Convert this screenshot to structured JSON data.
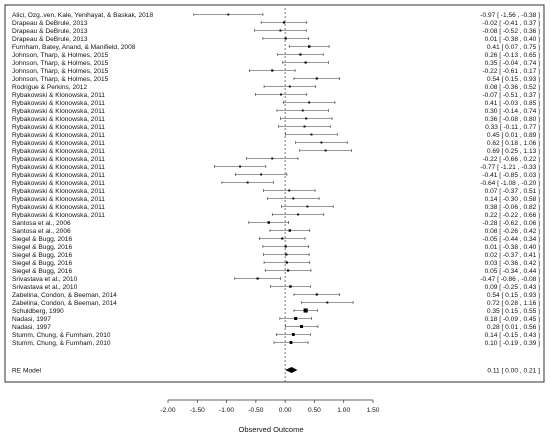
{
  "chart_data": {
    "type": "forest",
    "xlabel": "Observed Outcome",
    "xlim": [
      -2.0,
      1.5
    ],
    "ticks": [
      "-2.00",
      "-1.50",
      "-1.00",
      "-0.50",
      "0.00",
      "0.50",
      "1.00",
      "1.50"
    ],
    "studies": [
      {
        "label": "Alici, Ozg..ven, Kale, Yenihayat, & Baskak, 2018",
        "est": -0.97,
        "lo": -1.56,
        "hi": -0.38,
        "text": "-0.97 [ -1.56 , -0.38 ]"
      },
      {
        "label": "Drapeau & DeBrule, 2013",
        "est": -0.02,
        "lo": -0.41,
        "hi": 0.37,
        "text": "-0.02 [ -0.41 , 0.37 ]"
      },
      {
        "label": "Drapeau & DeBrule, 2013",
        "est": -0.08,
        "lo": -0.52,
        "hi": 0.36,
        "text": "-0.08 [ -0.52 , 0.36 ]"
      },
      {
        "label": "Drapeau & DeBrule, 2013",
        "est": 0.01,
        "lo": -0.38,
        "hi": 0.4,
        "text": "0.01 [ -0.38 , 0.40 ]"
      },
      {
        "label": "Furnham, Batey, Anand, & Manifield, 2008",
        "est": 0.41,
        "lo": 0.07,
        "hi": 0.75,
        "text": "0.41 [ 0.07 , 0.75 ]"
      },
      {
        "label": "Johnson, Tharp, & Holmes, 2015",
        "est": 0.26,
        "lo": -0.13,
        "hi": 0.65,
        "text": "0.26 [ -0.13 , 0.65 ]"
      },
      {
        "label": "Johnson, Tharp, & Holmes, 2015",
        "est": 0.35,
        "lo": -0.04,
        "hi": 0.74,
        "text": "0.35 [ -0.04 , 0.74 ]"
      },
      {
        "label": "Johnson, Tharp, & Holmes, 2015",
        "est": -0.22,
        "lo": -0.61,
        "hi": 0.17,
        "text": "-0.22 [ -0.61 , 0.17 ]"
      },
      {
        "label": "Johnson, Tharp, & Holmes, 2015",
        "est": 0.54,
        "lo": 0.15,
        "hi": 0.93,
        "text": "0.54 [ 0.15 , 0.93 ]"
      },
      {
        "label": "Rodrigue & Perkins, 2012",
        "est": 0.08,
        "lo": -0.36,
        "hi": 0.52,
        "text": "0.08 [ -0.36 , 0.52 ]"
      },
      {
        "label": "Rybakowski & Klonowska, 2011",
        "est": -0.07,
        "lo": -0.51,
        "hi": 0.37,
        "text": "-0.07 [ -0.51 , 0.37 ]"
      },
      {
        "label": "Rybakowski & Klonowska, 2011",
        "est": 0.41,
        "lo": -0.03,
        "hi": 0.85,
        "text": "0.41 [ -0.03 , 0.85 ]"
      },
      {
        "label": "Rybakowski & Klonowska, 2011",
        "est": 0.3,
        "lo": -0.14,
        "hi": 0.74,
        "text": "0.30 [ -0.14 , 0.74 ]"
      },
      {
        "label": "Rybakowski & Klonowska, 2011",
        "est": 0.36,
        "lo": -0.08,
        "hi": 0.8,
        "text": "0.36 [ -0.08 , 0.80 ]"
      },
      {
        "label": "Rybakowski & Klonowska, 2011",
        "est": 0.33,
        "lo": -0.11,
        "hi": 0.77,
        "text": "0.33 [ -0.11 , 0.77 ]"
      },
      {
        "label": "Rybakowski & Klonowska, 2011",
        "est": 0.45,
        "lo": 0.01,
        "hi": 0.89,
        "text": "0.45 [ 0.01 , 0.89 ]"
      },
      {
        "label": "Rybakowski & Klonowska, 2011",
        "est": 0.62,
        "lo": 0.18,
        "hi": 1.06,
        "text": "0.62 [ 0.18 , 1.06 ]"
      },
      {
        "label": "Rybakowski & Klonowska, 2011",
        "est": 0.69,
        "lo": 0.25,
        "hi": 1.13,
        "text": "0.69 [ 0.25 , 1.13 ]"
      },
      {
        "label": "Rybakowski & Klonowska, 2011",
        "est": -0.22,
        "lo": -0.66,
        "hi": 0.22,
        "text": "-0.22 [ -0.66 , 0.22 ]"
      },
      {
        "label": "Rybakowski & Klonowska, 2011",
        "est": -0.77,
        "lo": -1.21,
        "hi": -0.33,
        "text": "-0.77 [ -1.21 , -0.33 ]"
      },
      {
        "label": "Rybakowski & Klonowska, 2011",
        "est": -0.41,
        "lo": -0.85,
        "hi": 0.03,
        "text": "-0.41 [ -0.85 , 0.03 ]"
      },
      {
        "label": "Rybakowski & Klonowska, 2011",
        "est": -0.64,
        "lo": -1.08,
        "hi": -0.2,
        "text": "-0.64 [ -1.08 , -0.20 ]"
      },
      {
        "label": "Rybakowski & Klonowska, 2011",
        "est": 0.07,
        "lo": -0.37,
        "hi": 0.51,
        "text": "0.07 [ -0.37 , 0.51 ]"
      },
      {
        "label": "Rybakowski & Klonowska, 2011",
        "est": 0.14,
        "lo": -0.3,
        "hi": 0.58,
        "text": "0.14 [ -0.30 , 0.58 ]"
      },
      {
        "label": "Rybakowski & Klonowska, 2011",
        "est": 0.38,
        "lo": -0.06,
        "hi": 0.82,
        "text": "0.38 [ -0.06 , 0.82 ]"
      },
      {
        "label": "Rybakowski & Klonowska, 2011",
        "est": 0.22,
        "lo": -0.22,
        "hi": 0.66,
        "text": "0.22 [ -0.22 , 0.66 ]"
      },
      {
        "label": "Santosa et al., 2006",
        "est": -0.28,
        "lo": -0.62,
        "hi": 0.06,
        "text": "-0.28 [ -0.62 , 0.06 ]"
      },
      {
        "label": "Santosa et al., 2006",
        "est": 0.08,
        "lo": -0.26,
        "hi": 0.42,
        "text": "0.08 [ -0.26 , 0.42 ]"
      },
      {
        "label": "Siegel & Bugg, 2016",
        "est": -0.05,
        "lo": -0.44,
        "hi": 0.34,
        "text": "-0.05 [ -0.44 , 0.34 ]"
      },
      {
        "label": "Siegel & Bugg, 2016",
        "est": 0.01,
        "lo": -0.38,
        "hi": 0.4,
        "text": "0.01 [ -0.38 , 0.40 ]"
      },
      {
        "label": "Siegel & Bugg, 2016",
        "est": 0.02,
        "lo": -0.37,
        "hi": 0.41,
        "text": "0.02 [ -0.37 , 0.41 ]"
      },
      {
        "label": "Siegel & Bugg, 2016",
        "est": 0.03,
        "lo": -0.36,
        "hi": 0.42,
        "text": "0.03 [ -0.36 , 0.42 ]"
      },
      {
        "label": "Siegel & Bugg, 2016",
        "est": 0.05,
        "lo": -0.34,
        "hi": 0.44,
        "text": "0.05 [ -0.34 , 0.44 ]"
      },
      {
        "label": "Srivastava et al., 2010",
        "est": -0.47,
        "lo": -0.86,
        "hi": -0.08,
        "text": "-0.47 [ -0.86 , -0.08 ]"
      },
      {
        "label": "Srivastava et al., 2010",
        "est": 0.09,
        "lo": -0.25,
        "hi": 0.43,
        "text": "0.09 [ -0.25 , 0.43 ]"
      },
      {
        "label": "Zabelina, Condon, & Beeman, 2014",
        "est": 0.54,
        "lo": 0.15,
        "hi": 0.93,
        "text": "0.54 [ 0.15 , 0.93 ]"
      },
      {
        "label": "Zabelina, Condon, & Beeman, 2014",
        "est": 0.72,
        "lo": 0.28,
        "hi": 1.16,
        "text": "0.72 [ 0.28 , 1.16 ]"
      },
      {
        "label": "Schuldberg, 1990",
        "est": 0.35,
        "lo": 0.15,
        "hi": 0.55,
        "text": "0.35 [ 0.15 , 0.55 ]"
      },
      {
        "label": "Nadasi, 1997",
        "est": 0.18,
        "lo": -0.09,
        "hi": 0.45,
        "text": "0.18 [ -0.09 , 0.45 ]"
      },
      {
        "label": "Nadasi, 1997",
        "est": 0.28,
        "lo": 0.01,
        "hi": 0.56,
        "text": "0.28 [ 0.01 , 0.56 ]"
      },
      {
        "label": "Stumm, Chung, & Furnham, 2010",
        "est": 0.14,
        "lo": -0.15,
        "hi": 0.43,
        "text": "0.14 [ -0.15 , 0.43 ]"
      },
      {
        "label": "Stumm, Chung, & Furnham, 2010",
        "est": 0.1,
        "lo": -0.19,
        "hi": 0.39,
        "text": "0.10 [ -0.19 , 0.39 ]"
      }
    ],
    "summary": {
      "label": "RE Model",
      "est": 0.11,
      "lo": 0.0,
      "hi": 0.21,
      "text": "0.11 [ 0.00 , 0.21 ]"
    }
  }
}
